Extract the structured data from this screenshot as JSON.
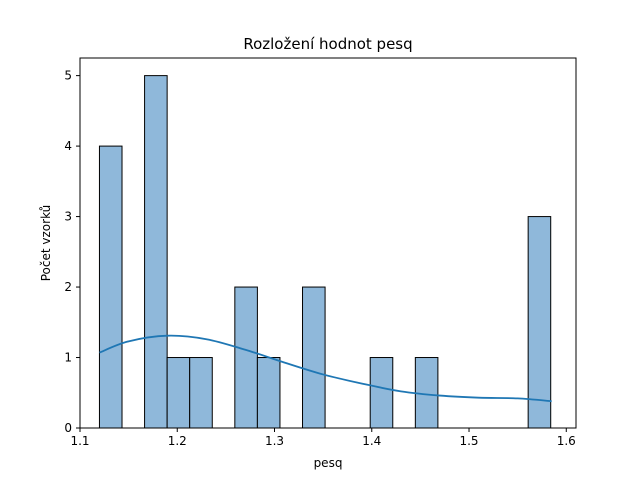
{
  "chart_data": {
    "type": "bar",
    "subtype": "histogram-with-kde",
    "title": "Rozložení hodnot pesq",
    "xlabel": "pesq",
    "ylabel": "Počet vzorků",
    "xlim": [
      1.1,
      1.61
    ],
    "ylim": [
      0,
      5.25
    ],
    "xticks": [
      "1.1",
      "1.2",
      "1.3",
      "1.4",
      "1.5",
      "1.6"
    ],
    "xtick_values": [
      1.1,
      1.2,
      1.3,
      1.4,
      1.5,
      1.6
    ],
    "yticks": [
      "0",
      "1",
      "2",
      "3",
      "4",
      "5"
    ],
    "ytick_values": [
      0,
      1,
      2,
      3,
      4,
      5
    ],
    "grid": false,
    "bin_start": 1.12,
    "bin_width": 0.0232,
    "counts": [
      4,
      0,
      5,
      1,
      1,
      0,
      2,
      1,
      0,
      2,
      0,
      0,
      1,
      0,
      1,
      0,
      0,
      0,
      0,
      3
    ],
    "kde": {
      "x": [
        1.12,
        1.15,
        1.19,
        1.23,
        1.27,
        1.31,
        1.35,
        1.39,
        1.43,
        1.47,
        1.51,
        1.55,
        1.585
      ],
      "y": [
        1.07,
        1.23,
        1.31,
        1.26,
        1.11,
        0.93,
        0.76,
        0.63,
        0.52,
        0.46,
        0.43,
        0.42,
        0.38
      ]
    },
    "colors": {
      "bar_fill": "#8fb8da",
      "bar_edge": "#000000",
      "kde_line": "#1f77b4"
    }
  }
}
